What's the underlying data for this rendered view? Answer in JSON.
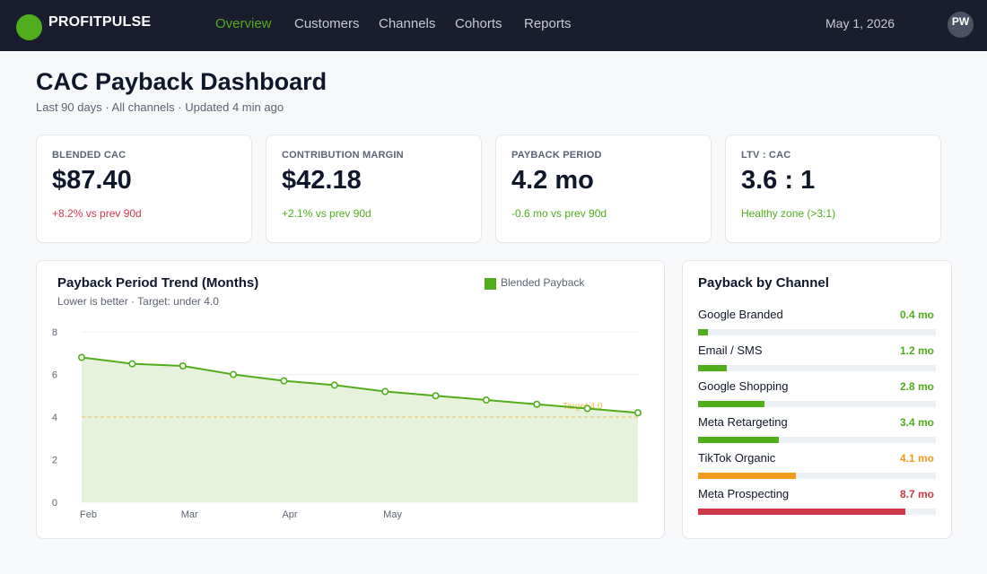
{
  "header": {
    "brand": "PROFITPULSE",
    "nav": [
      "Overview",
      "Customers",
      "Channels",
      "Cohorts",
      "Reports"
    ],
    "active_nav": "Overview",
    "date": "May 1, 2026",
    "avatar_initials": "PW"
  },
  "page": {
    "title": "CAC Payback Dashboard",
    "subtitle": "Last 90 days · All channels · Updated 4 min ago"
  },
  "kpis": [
    {
      "label": "BLENDED CAC",
      "value": "$87.40",
      "delta": "+8.2% vs prev 90d",
      "tone": "#d0384a"
    },
    {
      "label": "CONTRIBUTION MARGIN",
      "value": "$42.18",
      "delta": "+2.1% vs prev 90d",
      "tone": "#52ad1c"
    },
    {
      "label": "PAYBACK PERIOD",
      "value": "4.2 mo",
      "delta": "-0.6 mo vs prev 90d",
      "tone": "#52ad1c"
    },
    {
      "label": "LTV : CAC",
      "value": "3.6 : 1",
      "delta": "Healthy zone (>3:1)",
      "tone": "#52ad1c"
    }
  ],
  "trend": {
    "title": "Payback Period Trend (Months)",
    "subtitle": "Lower is better · Target: under 4.0",
    "legend": "Blended Payback"
  },
  "chart_data": {
    "type": "line",
    "title": "Payback Period Trend (Months)",
    "series": [
      {
        "name": "Blended Payback",
        "values": [
          6.8,
          6.5,
          6.4,
          6.0,
          5.7,
          5.5,
          5.2,
          5.0,
          4.8,
          4.6,
          4.4,
          4.2
        ],
        "color": "#52ad1c"
      }
    ],
    "x": [
      0,
      1,
      2,
      3,
      4,
      5,
      6,
      7,
      8,
      9,
      10,
      11
    ],
    "xticks": [
      {
        "at": 0,
        "label": "Feb"
      },
      {
        "at": 2,
        "label": "Mar"
      },
      {
        "at": 4,
        "label": "Apr"
      },
      {
        "at": 6,
        "label": "May"
      }
    ],
    "yticks": [
      0,
      2,
      4,
      6,
      8
    ],
    "ylim": [
      0,
      8
    ],
    "target": {
      "value": 4.0,
      "label": "Target 4.0",
      "color": "#e6c04a"
    },
    "grid": true
  },
  "channels": {
    "title": "Payback by Channel",
    "max": 10,
    "items": [
      {
        "name": "Google Branded",
        "value": 0.4,
        "label": "0.4 mo",
        "color": "#52ad1c"
      },
      {
        "name": "Email / SMS",
        "value": 1.2,
        "label": "1.2 mo",
        "color": "#52ad1c"
      },
      {
        "name": "Google Shopping",
        "value": 2.8,
        "label": "2.8 mo",
        "color": "#52ad1c"
      },
      {
        "name": "Meta Retargeting",
        "value": 3.4,
        "label": "3.4 mo",
        "color": "#52ad1c"
      },
      {
        "name": "TikTok Organic",
        "value": 4.1,
        "label": "4.1 mo",
        "color": "#f29b1d"
      },
      {
        "name": "Meta Prospecting",
        "value": 8.7,
        "label": "8.7 mo",
        "color": "#d0384a"
      }
    ]
  }
}
